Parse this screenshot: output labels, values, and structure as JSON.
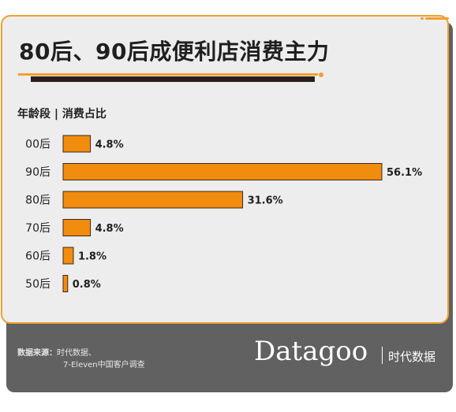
{
  "title": "80后、90后成便利店消费主力",
  "axis_caption": "年龄段 | 消费占比",
  "colors": {
    "accent": "#f0a12e",
    "bar": "#f28c0f",
    "card_bg": "#ededed",
    "footer_bg": "#616161"
  },
  "chart_data": {
    "type": "bar",
    "orientation": "horizontal",
    "title": "80后、90后成便利店消费主力",
    "categories": [
      "00后",
      "90后",
      "80后",
      "70后",
      "60后",
      "50后"
    ],
    "values": [
      4.8,
      56.1,
      31.6,
      4.8,
      1.8,
      0.8
    ],
    "value_labels": [
      "4.8%",
      "56.1%",
      "31.6%",
      "4.8%",
      "1.8%",
      "0.8%"
    ],
    "unit": "%",
    "xlim": [
      0,
      56.1
    ],
    "grid": false,
    "legend": "none"
  },
  "footer": {
    "source_label": "数据来源：",
    "source_line1": "时代数据、",
    "source_line2": "7-Eleven中国客户调查",
    "logo": "Datagoo",
    "logo_sub": "时代数据"
  }
}
